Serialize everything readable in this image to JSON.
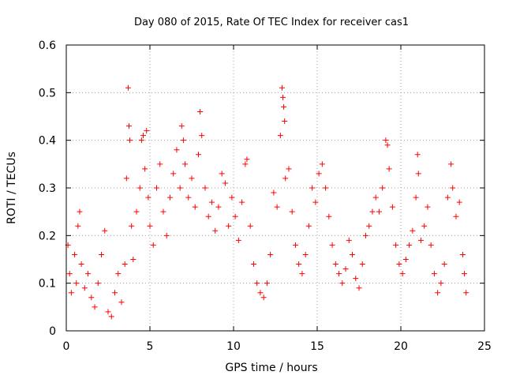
{
  "chart_data": {
    "type": "scatter",
    "title": "Day 080 of 2015, Rate Of TEC Index for receiver cas1",
    "xlabel": "GPS time / hours",
    "ylabel": "ROTI / TECUs",
    "xlim": [
      0,
      25
    ],
    "ylim": [
      0,
      0.6
    ],
    "xticks": [
      0,
      5,
      10,
      15,
      20,
      25
    ],
    "xtick_labels": [
      "0",
      "5",
      "10",
      "15",
      "20",
      "25"
    ],
    "yticks": [
      0,
      0.1,
      0.2,
      0.3,
      0.4,
      0.5,
      0.6
    ],
    "ytick_labels": [
      "0",
      "0.1",
      "0.2",
      "0.3",
      "0.4",
      "0.5",
      "0.6"
    ],
    "grid": true,
    "marker": "plus",
    "color": "#ff0000",
    "series": [
      {
        "name": "cas1 ROTI",
        "points": [
          [
            0.1,
            0.18
          ],
          [
            0.2,
            0.12
          ],
          [
            0.3,
            0.08
          ],
          [
            0.5,
            0.16
          ],
          [
            0.6,
            0.1
          ],
          [
            0.7,
            0.22
          ],
          [
            0.8,
            0.25
          ],
          [
            0.9,
            0.14
          ],
          [
            1.1,
            0.09
          ],
          [
            1.3,
            0.12
          ],
          [
            1.5,
            0.07
          ],
          [
            1.7,
            0.05
          ],
          [
            1.9,
            0.1
          ],
          [
            2.1,
            0.16
          ],
          [
            2.3,
            0.21
          ],
          [
            2.5,
            0.04
          ],
          [
            2.7,
            0.03
          ],
          [
            2.9,
            0.08
          ],
          [
            3.1,
            0.12
          ],
          [
            3.3,
            0.06
          ],
          [
            3.5,
            0.14
          ],
          [
            3.6,
            0.32
          ],
          [
            3.7,
            0.51
          ],
          [
            3.75,
            0.43
          ],
          [
            3.8,
            0.4
          ],
          [
            3.9,
            0.22
          ],
          [
            4.0,
            0.15
          ],
          [
            4.2,
            0.25
          ],
          [
            4.4,
            0.3
          ],
          [
            4.5,
            0.4
          ],
          [
            4.6,
            0.41
          ],
          [
            4.7,
            0.34
          ],
          [
            4.8,
            0.42
          ],
          [
            4.9,
            0.28
          ],
          [
            5.0,
            0.22
          ],
          [
            5.2,
            0.18
          ],
          [
            5.4,
            0.3
          ],
          [
            5.6,
            0.35
          ],
          [
            5.8,
            0.25
          ],
          [
            6.0,
            0.2
          ],
          [
            6.2,
            0.28
          ],
          [
            6.4,
            0.33
          ],
          [
            6.6,
            0.38
          ],
          [
            6.8,
            0.3
          ],
          [
            6.9,
            0.43
          ],
          [
            7.0,
            0.4
          ],
          [
            7.1,
            0.35
          ],
          [
            7.3,
            0.28
          ],
          [
            7.5,
            0.32
          ],
          [
            7.7,
            0.26
          ],
          [
            7.9,
            0.37
          ],
          [
            8.0,
            0.46
          ],
          [
            8.1,
            0.41
          ],
          [
            8.3,
            0.3
          ],
          [
            8.5,
            0.24
          ],
          [
            8.7,
            0.27
          ],
          [
            8.9,
            0.21
          ],
          [
            9.1,
            0.26
          ],
          [
            9.3,
            0.33
          ],
          [
            9.5,
            0.31
          ],
          [
            9.7,
            0.22
          ],
          [
            9.9,
            0.28
          ],
          [
            10.1,
            0.24
          ],
          [
            10.3,
            0.19
          ],
          [
            10.5,
            0.27
          ],
          [
            10.7,
            0.35
          ],
          [
            10.8,
            0.36
          ],
          [
            11.0,
            0.22
          ],
          [
            11.2,
            0.14
          ],
          [
            11.4,
            0.1
          ],
          [
            11.6,
            0.08
          ],
          [
            11.8,
            0.07
          ],
          [
            12.0,
            0.1
          ],
          [
            12.2,
            0.16
          ],
          [
            12.4,
            0.29
          ],
          [
            12.6,
            0.26
          ],
          [
            12.8,
            0.41
          ],
          [
            12.9,
            0.51
          ],
          [
            12.95,
            0.49
          ],
          [
            13.0,
            0.47
          ],
          [
            13.05,
            0.44
          ],
          [
            13.1,
            0.32
          ],
          [
            13.3,
            0.34
          ],
          [
            13.5,
            0.25
          ],
          [
            13.7,
            0.18
          ],
          [
            13.9,
            0.14
          ],
          [
            14.1,
            0.12
          ],
          [
            14.3,
            0.16
          ],
          [
            14.5,
            0.22
          ],
          [
            14.7,
            0.3
          ],
          [
            14.9,
            0.27
          ],
          [
            15.1,
            0.33
          ],
          [
            15.3,
            0.35
          ],
          [
            15.5,
            0.3
          ],
          [
            15.7,
            0.24
          ],
          [
            15.9,
            0.18
          ],
          [
            16.1,
            0.14
          ],
          [
            16.3,
            0.12
          ],
          [
            16.5,
            0.1
          ],
          [
            16.7,
            0.13
          ],
          [
            16.9,
            0.19
          ],
          [
            17.1,
            0.16
          ],
          [
            17.3,
            0.11
          ],
          [
            17.5,
            0.09
          ],
          [
            17.7,
            0.14
          ],
          [
            17.9,
            0.2
          ],
          [
            18.1,
            0.22
          ],
          [
            18.3,
            0.25
          ],
          [
            18.5,
            0.28
          ],
          [
            18.7,
            0.25
          ],
          [
            18.9,
            0.3
          ],
          [
            19.1,
            0.4
          ],
          [
            19.2,
            0.39
          ],
          [
            19.3,
            0.34
          ],
          [
            19.5,
            0.26
          ],
          [
            19.7,
            0.18
          ],
          [
            19.9,
            0.14
          ],
          [
            20.1,
            0.12
          ],
          [
            20.3,
            0.15
          ],
          [
            20.5,
            0.18
          ],
          [
            20.7,
            0.21
          ],
          [
            20.9,
            0.28
          ],
          [
            21.0,
            0.37
          ],
          [
            21.05,
            0.33
          ],
          [
            21.2,
            0.19
          ],
          [
            21.4,
            0.22
          ],
          [
            21.6,
            0.26
          ],
          [
            21.8,
            0.18
          ],
          [
            22.0,
            0.12
          ],
          [
            22.2,
            0.08
          ],
          [
            22.4,
            0.1
          ],
          [
            22.6,
            0.14
          ],
          [
            22.8,
            0.28
          ],
          [
            23.0,
            0.35
          ],
          [
            23.1,
            0.3
          ],
          [
            23.3,
            0.24
          ],
          [
            23.5,
            0.27
          ],
          [
            23.7,
            0.16
          ],
          [
            23.8,
            0.12
          ],
          [
            23.9,
            0.08
          ]
        ]
      }
    ]
  }
}
